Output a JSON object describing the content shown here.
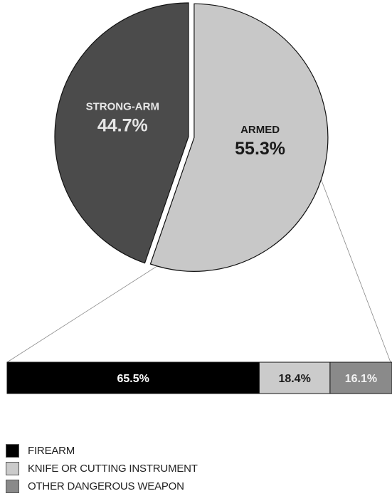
{
  "chart_data": [
    {
      "type": "pie",
      "slices": [
        {
          "label": "STRONG-ARM",
          "value": 44.7,
          "value_label": "44.7%",
          "color": "#4b4b4b",
          "label_color": "#e6e6e6",
          "exploded": false
        },
        {
          "label": "ARMED",
          "value": 55.3,
          "value_label": "55.3%",
          "color": "#c8c8c8",
          "label_color": "#1a1a1a",
          "exploded": true
        }
      ]
    },
    {
      "type": "bar",
      "orientation": "horizontal-stacked",
      "breakdown_of": "ARMED",
      "segments": [
        {
          "name": "FIREARM",
          "value": 65.5,
          "value_label": "65.5%",
          "color": "#000000",
          "label_color": "#ffffff"
        },
        {
          "name": "KNIFE OR CUTTING INSTRUMENT",
          "value": 18.4,
          "value_label": "18.4%",
          "color": "#cbcbcb",
          "label_color": "#1a1a1a"
        },
        {
          "name": "OTHER DANGEROUS WEAPON",
          "value": 16.1,
          "value_label": "16.1%",
          "color": "#8a8a8a",
          "label_color": "#f2f2f2"
        }
      ]
    }
  ],
  "legend": {
    "placement": "bottom-left",
    "items": [
      {
        "label": "FIREARM",
        "color": "#000000"
      },
      {
        "label": "KNIFE OR CUTTING INSTRUMENT",
        "color": "#cbcbcb"
      },
      {
        "label": "OTHER DANGEROUS WEAPON",
        "color": "#8a8a8a"
      }
    ]
  }
}
